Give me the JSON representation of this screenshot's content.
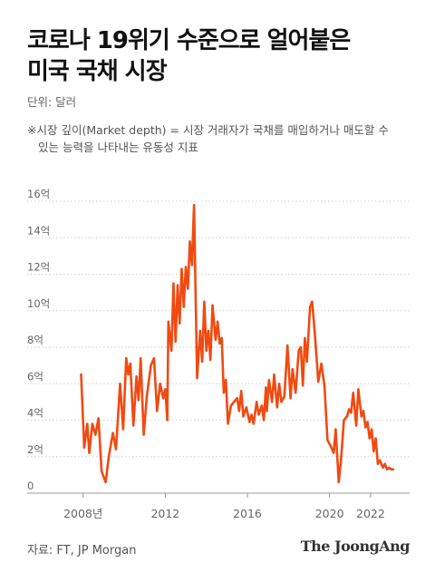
{
  "header": {
    "title_line1": "코로나 19위기 수준으로 얼어붙은",
    "title_line2": "미국 국채 시장",
    "unit": "단위: 달러",
    "note_line1": "※시장 깊이(Market depth) = 시장 거래자가 국채를 매입하거나 매도할 수",
    "note_line2": "있는 능력을 나타내는 유동성 지표"
  },
  "footer": {
    "source": "자료: FT, JP Morgan",
    "brand": "The JoongAng"
  },
  "colors": {
    "line": "#f04a12",
    "grid": "#cfcfcf",
    "axis": "#999999",
    "tick_text": "#666666"
  },
  "chart_data": {
    "type": "line",
    "title": "코로나 19위기 수준으로 얼어붙은 미국 국채 시장",
    "ylabel": "",
    "xlabel": "",
    "ylim": [
      0,
      16
    ],
    "xlim": [
      2006.6,
      2023.9
    ],
    "y_ticks": [
      {
        "value": 0,
        "label": "0"
      },
      {
        "value": 2,
        "label": "2억"
      },
      {
        "value": 4,
        "label": "4억"
      },
      {
        "value": 6,
        "label": "6억"
      },
      {
        "value": 8,
        "label": "8억"
      },
      {
        "value": 10,
        "label": "10억"
      },
      {
        "value": 12,
        "label": "12억"
      },
      {
        "value": 14,
        "label": "14억"
      },
      {
        "value": 16,
        "label": "16억"
      }
    ],
    "x_ticks": [
      {
        "value": 2008,
        "label": "2008년"
      },
      {
        "value": 2012,
        "label": "2012"
      },
      {
        "value": 2016,
        "label": "2016"
      },
      {
        "value": 2020,
        "label": "2020"
      },
      {
        "value": 2022,
        "label": "2022"
      }
    ],
    "grid": true,
    "series": [
      {
        "values": [
          [
            2007.9,
            6.5
          ],
          [
            2008.05,
            2.5
          ],
          [
            2008.2,
            3.8
          ],
          [
            2008.3,
            2.2
          ],
          [
            2008.45,
            3.8
          ],
          [
            2008.6,
            3.2
          ],
          [
            2008.75,
            4.1
          ],
          [
            2008.9,
            1.2
          ],
          [
            2009.1,
            0.6
          ],
          [
            2009.25,
            2.0
          ],
          [
            2009.45,
            3.3
          ],
          [
            2009.6,
            2.4
          ],
          [
            2009.8,
            6.0
          ],
          [
            2009.95,
            3.5
          ],
          [
            2010.1,
            7.4
          ],
          [
            2010.2,
            6.5
          ],
          [
            2010.3,
            7.1
          ],
          [
            2010.45,
            3.7
          ],
          [
            2010.6,
            6.4
          ],
          [
            2010.7,
            5.1
          ],
          [
            2010.8,
            7.4
          ],
          [
            2010.95,
            3.2
          ],
          [
            2011.1,
            5.3
          ],
          [
            2011.3,
            7.0
          ],
          [
            2011.45,
            7.4
          ],
          [
            2011.6,
            4.5
          ],
          [
            2011.75,
            6.0
          ],
          [
            2011.9,
            5.2
          ],
          [
            2012.0,
            5.7
          ],
          [
            2012.1,
            4.0
          ],
          [
            2012.15,
            9.4
          ],
          [
            2012.3,
            7.8
          ],
          [
            2012.4,
            11.5
          ],
          [
            2012.5,
            8.3
          ],
          [
            2012.6,
            11.4
          ],
          [
            2012.7,
            9.3
          ],
          [
            2012.8,
            12.3
          ],
          [
            2012.9,
            10.2
          ],
          [
            2013.0,
            12.4
          ],
          [
            2013.1,
            11.2
          ],
          [
            2013.2,
            13.8
          ],
          [
            2013.3,
            12.5
          ],
          [
            2013.4,
            15.8
          ],
          [
            2013.55,
            6.3
          ],
          [
            2013.7,
            8.9
          ],
          [
            2013.8,
            7.2
          ],
          [
            2013.9,
            10.5
          ],
          [
            2014.0,
            7.8
          ],
          [
            2014.1,
            8.9
          ],
          [
            2014.2,
            7.3
          ],
          [
            2014.3,
            10.3
          ],
          [
            2014.45,
            8.4
          ],
          [
            2014.55,
            9.4
          ],
          [
            2014.65,
            8.2
          ],
          [
            2014.75,
            8.5
          ],
          [
            2014.85,
            5.5
          ],
          [
            2014.95,
            6.2
          ],
          [
            2015.05,
            3.8
          ],
          [
            2015.2,
            4.8
          ],
          [
            2015.35,
            5.0
          ],
          [
            2015.5,
            5.2
          ],
          [
            2015.6,
            4.5
          ],
          [
            2015.7,
            5.6
          ],
          [
            2015.8,
            4.2
          ],
          [
            2015.95,
            4.7
          ],
          [
            2016.1,
            3.9
          ],
          [
            2016.2,
            4.3
          ],
          [
            2016.3,
            3.8
          ],
          [
            2016.45,
            5.0
          ],
          [
            2016.55,
            4.3
          ],
          [
            2016.7,
            4.8
          ],
          [
            2016.8,
            4.0
          ],
          [
            2016.9,
            5.8
          ],
          [
            2016.95,
            4.5
          ],
          [
            2017.05,
            6.2
          ],
          [
            2017.2,
            5.0
          ],
          [
            2017.3,
            6.5
          ],
          [
            2017.45,
            4.7
          ],
          [
            2017.55,
            6.0
          ],
          [
            2017.65,
            5.0
          ],
          [
            2017.8,
            5.3
          ],
          [
            2017.95,
            8.1
          ],
          [
            2018.1,
            5.2
          ],
          [
            2018.2,
            6.8
          ],
          [
            2018.35,
            5.5
          ],
          [
            2018.5,
            7.8
          ],
          [
            2018.6,
            8.0
          ],
          [
            2018.7,
            5.9
          ],
          [
            2018.8,
            8.5
          ],
          [
            2018.9,
            7.2
          ],
          [
            2019.05,
            10.2
          ],
          [
            2019.15,
            10.5
          ],
          [
            2019.3,
            8.5
          ],
          [
            2019.45,
            6.1
          ],
          [
            2019.6,
            7.1
          ],
          [
            2019.75,
            5.9
          ],
          [
            2019.9,
            2.9
          ],
          [
            2020.05,
            2.6
          ],
          [
            2020.2,
            2.2
          ],
          [
            2020.3,
            3.5
          ],
          [
            2020.45,
            0.6
          ],
          [
            2020.55,
            1.7
          ],
          [
            2020.7,
            4.0
          ],
          [
            2020.85,
            4.2
          ],
          [
            2020.95,
            4.6
          ],
          [
            2021.05,
            4.4
          ],
          [
            2021.15,
            5.5
          ],
          [
            2021.3,
            3.7
          ],
          [
            2021.4,
            5.7
          ],
          [
            2021.55,
            4.2
          ],
          [
            2021.65,
            4.5
          ],
          [
            2021.75,
            3.6
          ],
          [
            2021.85,
            3.9
          ],
          [
            2021.95,
            3.0
          ],
          [
            2022.05,
            3.5
          ],
          [
            2022.15,
            2.3
          ],
          [
            2022.25,
            3.0
          ],
          [
            2022.35,
            1.6
          ],
          [
            2022.45,
            1.8
          ],
          [
            2022.6,
            1.4
          ],
          [
            2022.7,
            1.6
          ],
          [
            2022.8,
            1.3
          ],
          [
            2022.9,
            1.4
          ],
          [
            2023.0,
            1.3
          ],
          [
            2023.1,
            1.3
          ]
        ]
      }
    ]
  }
}
